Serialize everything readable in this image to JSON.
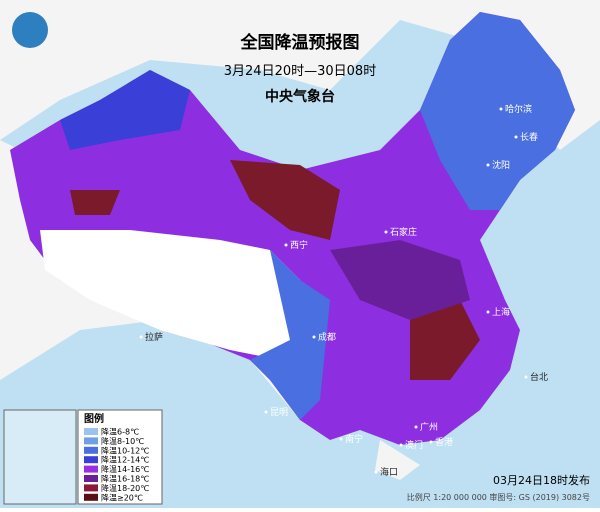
{
  "header": {
    "title": "全国降温预报图",
    "period": "3月24日20时—30日08时",
    "issuer": "中央气象台"
  },
  "legend": {
    "title": "图例",
    "items": [
      {
        "label": "降温6-8℃",
        "color": "#9cc3ef"
      },
      {
        "label": "降温8-10℃",
        "color": "#6f9fe6"
      },
      {
        "label": "降温10-12℃",
        "color": "#4a6fe0"
      },
      {
        "label": "降温12-14℃",
        "color": "#3a3fd8"
      },
      {
        "label": "降温14-16℃",
        "color": "#9a2ee6"
      },
      {
        "label": "降温16-18℃",
        "color": "#6a1f9a"
      },
      {
        "label": "降温18-20℃",
        "color": "#8a1a3a"
      },
      {
        "label": "降温≥20℃",
        "color": "#5a0f14"
      }
    ]
  },
  "cities": [
    "哈尔滨",
    "长春",
    "沈阳",
    "石家庄",
    "西宁",
    "成都",
    "拉萨",
    "昆明",
    "上海",
    "台北",
    "广州",
    "南宁",
    "香港",
    "澳门",
    "海口"
  ],
  "footer": {
    "issued": "03月24日18时发布",
    "scale": "比例尺 1:20 000 000  审图号: GS (2019) 3082号"
  }
}
